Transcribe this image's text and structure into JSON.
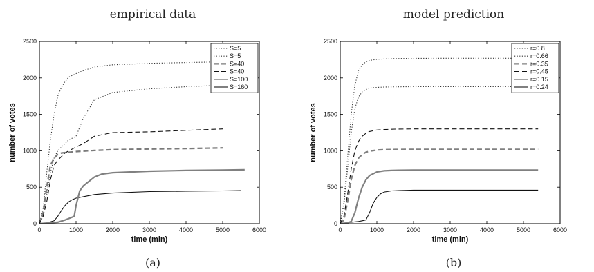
{
  "chart_data": [
    {
      "type": "line",
      "title": "empirical data",
      "caption": "(a)",
      "xlabel": "time (min)",
      "ylabel": "number of votes",
      "xlim": [
        0,
        6000
      ],
      "ylim": [
        0,
        2500
      ],
      "xticks": [
        0,
        1000,
        2000,
        3000,
        4000,
        5000,
        6000
      ],
      "yticks": [
        0,
        500,
        1000,
        1500,
        2000,
        2500
      ],
      "grid": false,
      "legend_position": "top-right",
      "series": [
        {
          "name": "S=5",
          "style": "dotted",
          "color": "#333333",
          "x": [
            0,
            100,
            200,
            300,
            400,
            500,
            600,
            700,
            800,
            1000,
            1200,
            1500,
            2000,
            3000,
            4000,
            5000,
            5400
          ],
          "y": [
            0,
            200,
            700,
            1150,
            1500,
            1750,
            1870,
            1950,
            2010,
            2060,
            2100,
            2150,
            2180,
            2200,
            2210,
            2220,
            2230
          ]
        },
        {
          "name": "S=5",
          "style": "dotted",
          "color": "#333333",
          "x": [
            0,
            100,
            200,
            300,
            400,
            500,
            600,
            700,
            800,
            1000,
            1200,
            1500,
            2000,
            3000,
            4000,
            5000,
            5400
          ],
          "y": [
            0,
            100,
            400,
            700,
            900,
            1000,
            1050,
            1100,
            1150,
            1200,
            1450,
            1700,
            1800,
            1850,
            1880,
            1900,
            1910
          ]
        },
        {
          "name": "S=40",
          "style": "dashed",
          "color": "#7a7a7a",
          "x": [
            0,
            100,
            200,
            300,
            400,
            500,
            600,
            700,
            800,
            1000,
            1500,
            2000,
            3000,
            4000,
            5000
          ],
          "y": [
            0,
            150,
            500,
            800,
            900,
            950,
            970,
            975,
            980,
            990,
            1005,
            1015,
            1025,
            1030,
            1040
          ]
        },
        {
          "name": "S=40",
          "style": "dashed",
          "color": "#111111",
          "x": [
            0,
            100,
            200,
            300,
            400,
            500,
            600,
            700,
            800,
            1000,
            1200,
            1500,
            2000,
            3000,
            4000,
            5000
          ],
          "y": [
            0,
            100,
            300,
            600,
            800,
            870,
            920,
            970,
            1000,
            1050,
            1100,
            1200,
            1250,
            1260,
            1280,
            1300
          ]
        },
        {
          "name": "S=100",
          "style": "solid",
          "color": "#111111",
          "x": [
            0,
            200,
            400,
            500,
            600,
            700,
            800,
            900,
            1000,
            1200,
            1500,
            2000,
            3000,
            4000,
            5000,
            5500
          ],
          "y": [
            0,
            10,
            40,
            100,
            180,
            250,
            300,
            330,
            350,
            370,
            400,
            420,
            440,
            445,
            450,
            455
          ]
        },
        {
          "name": "S=160",
          "style": "solid",
          "color": "#808080",
          "x": [
            0,
            500,
            700,
            800,
            950,
            1000,
            1100,
            1200,
            1300,
            1500,
            1700,
            2000,
            3000,
            4000,
            5000,
            5600
          ],
          "y": [
            0,
            20,
            50,
            70,
            100,
            250,
            450,
            520,
            560,
            640,
            680,
            700,
            720,
            730,
            735,
            740
          ]
        }
      ]
    },
    {
      "type": "line",
      "title": "model prediction",
      "caption": "(b)",
      "xlabel": "time (min)",
      "ylabel": "number of votes",
      "xlim": [
        0,
        6000
      ],
      "ylim": [
        0,
        2500
      ],
      "xticks": [
        0,
        1000,
        2000,
        3000,
        4000,
        5000,
        6000
      ],
      "yticks": [
        0,
        500,
        1000,
        1500,
        2000,
        2500
      ],
      "grid": false,
      "legend_position": "top-right",
      "series": [
        {
          "name": "r=0.8",
          "style": "dotted",
          "color": "#333333",
          "x": [
            0,
            100,
            200,
            300,
            400,
            500,
            600,
            700,
            800,
            1000,
            1200,
            1500,
            2000,
            3000,
            4000,
            5400
          ],
          "y": [
            0,
            300,
            900,
            1500,
            1900,
            2100,
            2180,
            2220,
            2240,
            2255,
            2260,
            2265,
            2268,
            2270,
            2270,
            2270
          ]
        },
        {
          "name": "r=0.66",
          "style": "dotted",
          "color": "#333333",
          "x": [
            0,
            100,
            200,
            300,
            400,
            500,
            600,
            700,
            800,
            1000,
            1200,
            1500,
            2000,
            3000,
            4000,
            5400
          ],
          "y": [
            0,
            250,
            750,
            1250,
            1580,
            1740,
            1810,
            1840,
            1860,
            1870,
            1875,
            1878,
            1880,
            1880,
            1880,
            1880
          ]
        },
        {
          "name": "r=0.35",
          "style": "dashed",
          "color": "#808080",
          "x": [
            0,
            100,
            200,
            300,
            400,
            500,
            600,
            700,
            800,
            1000,
            1200,
            1500,
            2000,
            3000,
            4000,
            5400
          ],
          "y": [
            0,
            50,
            300,
            600,
            800,
            900,
            950,
            980,
            995,
            1010,
            1015,
            1018,
            1020,
            1020,
            1020,
            1020
          ]
        },
        {
          "name": "r=0.45",
          "style": "dashed",
          "color": "#111111",
          "x": [
            0,
            100,
            200,
            300,
            400,
            500,
            600,
            700,
            800,
            1000,
            1200,
            1500,
            2000,
            3000,
            4000,
            5400
          ],
          "y": [
            0,
            100,
            400,
            750,
            1000,
            1130,
            1200,
            1240,
            1265,
            1285,
            1292,
            1297,
            1300,
            1300,
            1300,
            1300
          ]
        },
        {
          "name": "r=0.15",
          "style": "solid",
          "color": "#111111",
          "x": [
            0,
            300,
            500,
            600,
            700,
            800,
            900,
            1000,
            1100,
            1200,
            1400,
            1600,
            2000,
            3000,
            4000,
            5400
          ],
          "y": [
            0,
            20,
            30,
            40,
            50,
            150,
            280,
            360,
            410,
            435,
            450,
            455,
            460,
            460,
            460,
            460
          ]
        },
        {
          "name": "r=0.24",
          "style": "solid",
          "color": "#808080",
          "x": [
            0,
            200,
            300,
            400,
            500,
            600,
            700,
            800,
            1000,
            1200,
            1400,
            1600,
            2000,
            3000,
            4000,
            5400
          ],
          "y": [
            0,
            10,
            30,
            150,
            350,
            500,
            600,
            660,
            710,
            725,
            730,
            733,
            735,
            735,
            735,
            735
          ]
        }
      ]
    }
  ]
}
